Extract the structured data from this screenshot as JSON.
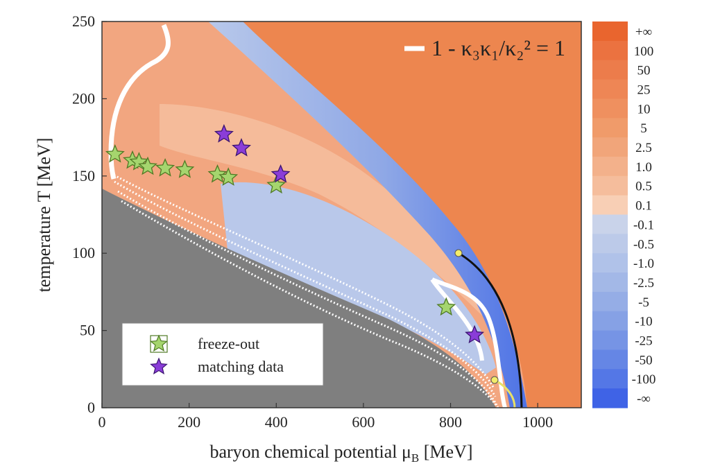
{
  "chart_data": {
    "type": "heatmap",
    "title": "",
    "xlabel": "baryon chemical potential μ",
    "xlabel_sub": "B",
    "xlabel_unit": " [MeV]",
    "ylabel": "temperature T [MeV]",
    "xlim": [
      0,
      1100
    ],
    "ylim": [
      0,
      250
    ],
    "x_ticks": [
      0,
      200,
      400,
      600,
      800,
      1000
    ],
    "y_ticks": [
      0,
      50,
      100,
      150,
      200,
      250
    ],
    "annotation": "1 - κ₃κ₁/κ₂² = 1",
    "colorbar": {
      "labels": [
        "+∞",
        "100",
        "50",
        "25",
        "10",
        "5",
        "2.5",
        "1.0",
        "0.5",
        "0.1",
        "-0.1",
        "-0.5",
        "-1.0",
        "-2.5",
        "-5",
        "-10",
        "-25",
        "-50",
        "-100",
        "-∞"
      ],
      "colors": [
        "#e9652e",
        "#eb7240",
        "#ec7c4b",
        "#ee8655",
        "#ef905f",
        "#f09b6a",
        "#f1a57a",
        "#f3b18b",
        "#f5bd9c",
        "#f8cfb5",
        "#c9d3ea",
        "#bccae9",
        "#b0c2e9",
        "#a3b8e7",
        "#95ade6",
        "#86a1e5",
        "#7694e5",
        "#6586e5",
        "#5477e6",
        "#3f63e6"
      ]
    },
    "series": [
      {
        "name": "freeze-out",
        "marker": "star",
        "color": "#a5d56e",
        "points": [
          [
            30,
            164
          ],
          [
            70,
            160
          ],
          [
            85,
            159
          ],
          [
            105,
            156
          ],
          [
            145,
            155
          ],
          [
            190,
            154
          ],
          [
            265,
            151
          ],
          [
            290,
            149
          ],
          [
            400,
            144
          ],
          [
            790,
            65
          ]
        ]
      },
      {
        "name": "matching data",
        "marker": "star",
        "color": "#8a3dd8",
        "points": [
          [
            280,
            177
          ],
          [
            320,
            168
          ],
          [
            410,
            151
          ],
          [
            855,
            47
          ]
        ]
      }
    ],
    "legend_position": "bottom-left"
  }
}
